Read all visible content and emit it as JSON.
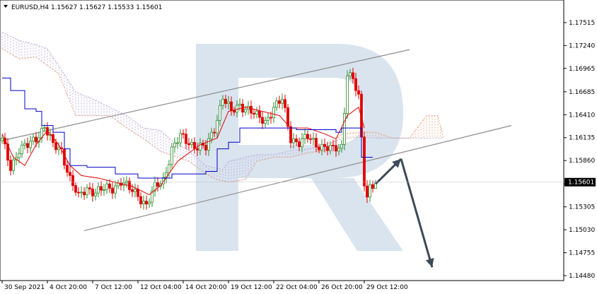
{
  "header": {
    "symbol_line": "EURUSD,H4  1.15627 1.15627 1.15533 1.15601"
  },
  "colors": {
    "bull": "#2e8b2e",
    "bear": "#e00000",
    "tenkan": "#e00000",
    "kijun": "#0000cc",
    "cloud_a": "#e9a27a",
    "cloud_b": "#b7a6d6",
    "channel": "#8c8c8c",
    "arrow": "#3d4a57",
    "watermark": "#dbe5ef"
  },
  "chart_data": {
    "type": "candlestick",
    "title": "",
    "instrument": "EURUSD",
    "timeframe": "H4",
    "last_quote": {
      "open": 1.15627,
      "high": 1.15627,
      "low": 1.15533,
      "close": 1.15601
    },
    "current_price_label": "1.15601",
    "ylim": [
      1.1448,
      1.1765
    ],
    "y_ticks": [
      "1.17515",
      "1.17240",
      "1.16965",
      "1.16685",
      "1.16410",
      "1.16135",
      "1.15860",
      "1.15580",
      "1.15305",
      "1.15030",
      "1.14755",
      "1.14480"
    ],
    "x_ticks": [
      "30 Sep 2021",
      "4 Oct 20:00",
      "7 Oct 12:00",
      "12 Oct 04:00",
      "14 Oct 20:00",
      "19 Oct 12:00",
      "22 Oct 04:00",
      "26 Oct 20:00",
      "29 Oct 12:00"
    ],
    "x_tick_bars": [
      0,
      16,
      32,
      48,
      64,
      80,
      96,
      112,
      128
    ],
    "close_anchors": [
      [
        0,
        1.161
      ],
      [
        3,
        1.1578
      ],
      [
        6,
        1.16
      ],
      [
        9,
        1.1603
      ],
      [
        12,
        1.1613
      ],
      [
        15,
        1.1628
      ],
      [
        18,
        1.1603
      ],
      [
        21,
        1.1598
      ],
      [
        24,
        1.1565
      ],
      [
        27,
        1.1541
      ],
      [
        30,
        1.1553
      ],
      [
        33,
        1.1549
      ],
      [
        36,
        1.1551
      ],
      [
        39,
        1.1553
      ],
      [
        42,
        1.1562
      ],
      [
        45,
        1.1551
      ],
      [
        48,
        1.1545
      ],
      [
        51,
        1.1533
      ],
      [
        54,
        1.1553
      ],
      [
        57,
        1.1563
      ],
      [
        60,
        1.16
      ],
      [
        63,
        1.1614
      ],
      [
        66,
        1.1608
      ],
      [
        69,
        1.1603
      ],
      [
        72,
        1.16
      ],
      [
        75,
        1.1625
      ],
      [
        78,
        1.1663
      ],
      [
        81,
        1.1643
      ],
      [
        84,
        1.1653
      ],
      [
        87,
        1.1648
      ],
      [
        90,
        1.1638
      ],
      [
        93,
        1.1633
      ],
      [
        96,
        1.165
      ],
      [
        99,
        1.1658
      ],
      [
        102,
        1.1613
      ],
      [
        105,
        1.1608
      ],
      [
        108,
        1.1613
      ],
      [
        111,
        1.1606
      ],
      [
        114,
        1.1603
      ],
      [
        117,
        1.1598
      ],
      [
        120,
        1.1603
      ],
      [
        122,
        1.1693
      ],
      [
        124,
        1.1683
      ],
      [
        126,
        1.166
      ],
      [
        128,
        1.156
      ],
      [
        129,
        1.1544
      ],
      [
        130,
        1.1556
      ],
      [
        132,
        1.156
      ]
    ],
    "tenkan_anchors": [
      [
        0,
        1.1618
      ],
      [
        4,
        1.159
      ],
      [
        8,
        1.158
      ],
      [
        12,
        1.1605
      ],
      [
        16,
        1.1622
      ],
      [
        20,
        1.1605
      ],
      [
        24,
        1.158
      ],
      [
        28,
        1.1568
      ],
      [
        34,
        1.1565
      ],
      [
        40,
        1.156
      ],
      [
        46,
        1.1555
      ],
      [
        52,
        1.1545
      ],
      [
        56,
        1.1556
      ],
      [
        62,
        1.1585
      ],
      [
        70,
        1.1605
      ],
      [
        76,
        1.1613
      ],
      [
        80,
        1.1645
      ],
      [
        86,
        1.165
      ],
      [
        92,
        1.1645
      ],
      [
        98,
        1.164
      ],
      [
        102,
        1.1625
      ],
      [
        108,
        1.1625
      ],
      [
        114,
        1.1618
      ],
      [
        118,
        1.1612
      ],
      [
        122,
        1.164
      ],
      [
        126,
        1.165
      ],
      [
        128,
        1.1625
      ]
    ],
    "kijun_anchors": [
      [
        0,
        1.1685
      ],
      [
        3,
        1.167
      ],
      [
        8,
        1.1648
      ],
      [
        12,
        1.1645
      ],
      [
        14,
        1.1628
      ],
      [
        18,
        1.162
      ],
      [
        22,
        1.16
      ],
      [
        24,
        1.158
      ],
      [
        30,
        1.1578
      ],
      [
        36,
        1.1578
      ],
      [
        40,
        1.157
      ],
      [
        46,
        1.157
      ],
      [
        48,
        1.1565
      ],
      [
        56,
        1.1565
      ],
      [
        60,
        1.157
      ],
      [
        72,
        1.1573
      ],
      [
        74,
        1.1573
      ],
      [
        76,
        1.16
      ],
      [
        80,
        1.1608
      ],
      [
        84,
        1.1625
      ],
      [
        96,
        1.1625
      ],
      [
        102,
        1.1625
      ],
      [
        104,
        1.1623
      ],
      [
        114,
        1.1623
      ],
      [
        118,
        1.162
      ],
      [
        120,
        1.1625
      ],
      [
        126,
        1.1625
      ],
      [
        127,
        1.159
      ],
      [
        131,
        1.159
      ]
    ],
    "cloud_span_a": [
      [
        0,
        1.172
      ],
      [
        6,
        1.1708
      ],
      [
        12,
        1.171
      ],
      [
        16,
        1.17
      ],
      [
        20,
        1.169
      ],
      [
        26,
        1.164
      ],
      [
        32,
        1.164
      ],
      [
        38,
        1.164
      ],
      [
        44,
        1.1625
      ],
      [
        50,
        1.1612
      ],
      [
        56,
        1.1597
      ],
      [
        60,
        1.1592
      ],
      [
        66,
        1.1585
      ],
      [
        72,
        1.157
      ],
      [
        76,
        1.1563
      ],
      [
        80,
        1.156
      ],
      [
        86,
        1.1563
      ],
      [
        90,
        1.1585
      ],
      [
        96,
        1.159
      ],
      [
        102,
        1.159
      ],
      [
        108,
        1.1595
      ],
      [
        114,
        1.1598
      ],
      [
        120,
        1.1618
      ],
      [
        126,
        1.162
      ],
      [
        132,
        1.162
      ],
      [
        138,
        1.1613
      ],
      [
        144,
        1.1613
      ],
      [
        150,
        1.164
      ],
      [
        154,
        1.164
      ],
      [
        156,
        1.1613
      ]
    ],
    "cloud_span_b": [
      [
        0,
        1.174
      ],
      [
        6,
        1.173
      ],
      [
        12,
        1.1725
      ],
      [
        16,
        1.172
      ],
      [
        20,
        1.17
      ],
      [
        26,
        1.1668
      ],
      [
        32,
        1.166
      ],
      [
        38,
        1.165
      ],
      [
        44,
        1.164
      ],
      [
        50,
        1.1625
      ],
      [
        56,
        1.1622
      ],
      [
        60,
        1.161
      ],
      [
        66,
        1.1598
      ],
      [
        72,
        1.158
      ],
      [
        78,
        1.1575
      ],
      [
        80,
        1.1585
      ],
      [
        86,
        1.159
      ],
      [
        90,
        1.1593
      ],
      [
        96,
        1.1593
      ],
      [
        102,
        1.1598
      ],
      [
        108,
        1.16
      ],
      [
        114,
        1.1605
      ],
      [
        120,
        1.1612
      ],
      [
        126,
        1.1614
      ],
      [
        132,
        1.1613
      ],
      [
        138,
        1.1613
      ],
      [
        144,
        1.1613
      ],
      [
        150,
        1.1613
      ],
      [
        154,
        1.1613
      ],
      [
        156,
        1.1613
      ]
    ],
    "channel_upper": [
      [
        0,
        1.161
      ],
      [
        144,
        1.1719
      ]
    ],
    "channel_lower": [
      [
        29,
        1.1502
      ],
      [
        180,
        1.1628
      ]
    ],
    "forecast_arrows": [
      {
        "from": [
          132,
          1.1558
        ],
        "to": [
          141,
          1.1588
        ]
      },
      {
        "from": [
          141,
          1.1588
        ],
        "to": [
          152,
          1.1458
        ]
      }
    ]
  }
}
